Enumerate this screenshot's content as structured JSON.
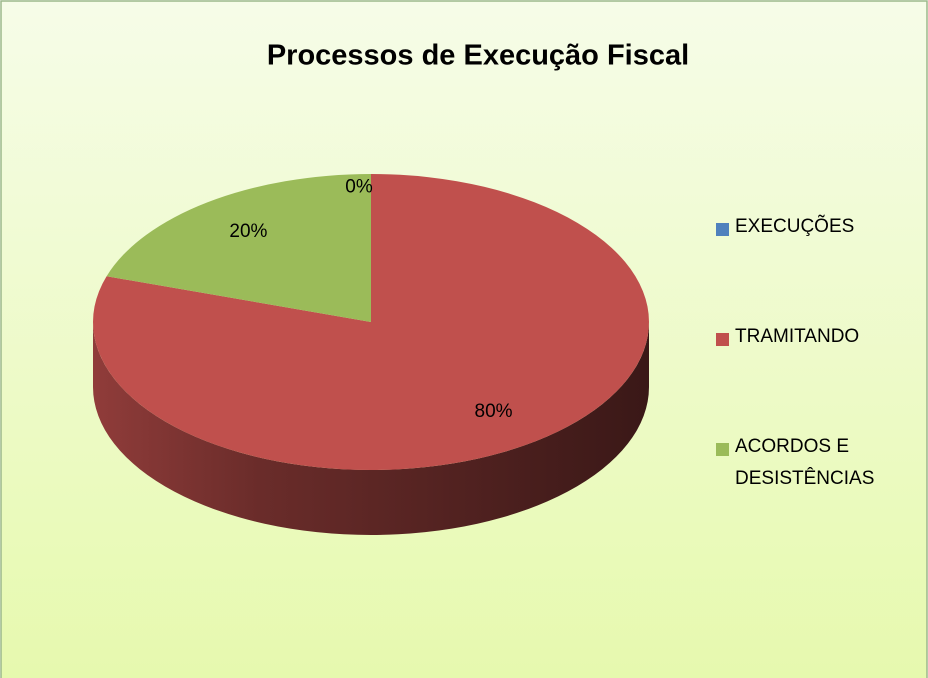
{
  "chart_data": {
    "type": "pie3d",
    "title": "Processos de Execução Fiscal",
    "categories": [
      "EXECUÇÕES",
      "TRAMITANDO",
      "ACORDOS E DESISTÊNCIAS"
    ],
    "values": [
      0,
      80,
      20
    ],
    "value_labels": [
      "0%",
      "80%",
      "20%"
    ],
    "colors": [
      "#4f81bd",
      "#c0504d",
      "#9bbb59"
    ],
    "legend": "right"
  }
}
